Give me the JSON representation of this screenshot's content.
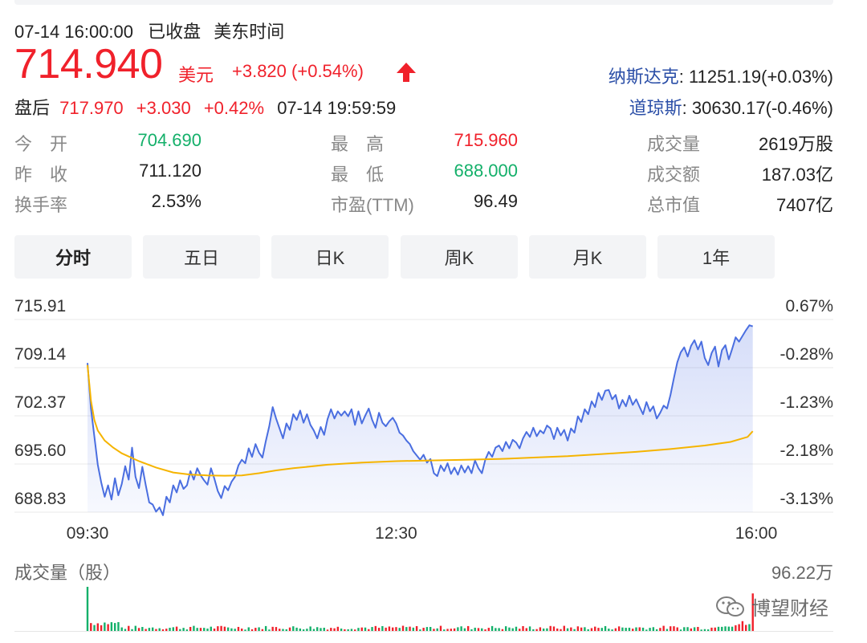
{
  "header": {
    "datetime": "07-14 16:00:00",
    "status": "已收盘",
    "timezone": "美东时间",
    "price": "714.940",
    "currency": "美元",
    "change": "+3.820",
    "change_pct": "(+0.54%)",
    "afterhours_label": "盘后",
    "afterhours_price": "717.970",
    "afterhours_change": "+3.030",
    "afterhours_pct": "+0.42%",
    "afterhours_time": "07-14 19:59:59",
    "nasdaq_label": "纳斯达克",
    "nasdaq_value": ": 11251.19(+0.03%)",
    "dow_label": "道琼斯",
    "dow_value": ": 30630.17(-0.46%)",
    "colors": {
      "up": "#f0212b",
      "down": "#14b06a",
      "index_link": "#2a4ea7"
    }
  },
  "stats": {
    "open_label": "今　开",
    "open_value": "704.690",
    "prev_close_label": "昨　收",
    "prev_close_value": "711.120",
    "turnover_label": "换手率",
    "turnover_value": "2.53%",
    "high_label": "最　高",
    "high_value": "715.960",
    "low_label": "最　低",
    "low_value": "688.000",
    "pe_label": "市盈(TTM)",
    "pe_value": "96.49",
    "volume_label": "成交量",
    "volume_value": "2619万股",
    "amount_label": "成交额",
    "amount_value": "187.03亿",
    "mcap_label": "总市值",
    "mcap_value": "7407亿"
  },
  "tabs": [
    "分时",
    "五日",
    "日K",
    "周K",
    "月K",
    "1年"
  ],
  "active_tab": 0,
  "volume_panel": {
    "title": "成交量（股）",
    "max_label": "96.22万"
  },
  "watermark": {
    "text": "博望财经",
    "icon": "wechat-icon"
  },
  "chart_data": {
    "type": "line",
    "ylim": [
      688.83,
      715.91
    ],
    "y_ticks_left": [
      "715.91",
      "709.14",
      "702.37",
      "695.60",
      "688.83"
    ],
    "y_ticks_right": [
      "0.67%",
      "-0.28%",
      "-1.23%",
      "-2.18%",
      "-3.13%"
    ],
    "x_ticks": [
      "09:30",
      "12:30",
      "16:00"
    ],
    "x_range_minutes": [
      0,
      390
    ],
    "grid": true,
    "series": [
      {
        "color": "#4a6ee0",
        "fill": true,
        "points": [
          [
            0,
            709.8
          ],
          [
            2,
            703.4
          ],
          [
            4,
            699.5
          ],
          [
            6,
            695.5
          ],
          [
            8,
            693.0
          ],
          [
            10,
            691.0
          ],
          [
            12,
            692.6
          ],
          [
            14,
            690.6
          ],
          [
            16,
            693.6
          ],
          [
            18,
            691.2
          ],
          [
            20,
            692.8
          ],
          [
            22,
            695.3
          ],
          [
            24,
            693.4
          ],
          [
            26,
            697.9
          ],
          [
            28,
            693.8
          ],
          [
            30,
            692.2
          ],
          [
            32,
            695.2
          ],
          [
            34,
            692.6
          ],
          [
            36,
            690.2
          ],
          [
            38,
            689.9
          ],
          [
            40,
            688.9
          ],
          [
            42,
            689.5
          ],
          [
            44,
            688.4
          ],
          [
            46,
            691.0
          ],
          [
            48,
            690.2
          ],
          [
            50,
            692.6
          ],
          [
            52,
            691.6
          ],
          [
            54,
            693.3
          ],
          [
            56,
            692.1
          ],
          [
            58,
            692.6
          ],
          [
            60,
            694.6
          ],
          [
            62,
            693.4
          ],
          [
            64,
            695.0
          ],
          [
            66,
            694.0
          ],
          [
            68,
            693.3
          ],
          [
            70,
            692.7
          ],
          [
            72,
            695.0
          ],
          [
            74,
            693.5
          ],
          [
            76,
            691.8
          ],
          [
            78,
            690.8
          ],
          [
            80,
            692.5
          ],
          [
            82,
            691.9
          ],
          [
            84,
            693.1
          ],
          [
            86,
            693.8
          ],
          [
            88,
            695.4
          ],
          [
            90,
            696.2
          ],
          [
            92,
            695.7
          ],
          [
            94,
            697.8
          ],
          [
            96,
            696.6
          ],
          [
            98,
            698.4
          ],
          [
            100,
            697.2
          ],
          [
            102,
            696.5
          ],
          [
            104,
            698.8
          ],
          [
            106,
            700.9
          ],
          [
            108,
            703.6
          ],
          [
            110,
            702.0
          ],
          [
            112,
            700.6
          ],
          [
            114,
            699.2
          ],
          [
            116,
            701.3
          ],
          [
            118,
            700.4
          ],
          [
            120,
            702.6
          ],
          [
            122,
            701.8
          ],
          [
            124,
            703.1
          ],
          [
            126,
            701.4
          ],
          [
            128,
            702.6
          ],
          [
            130,
            701.1
          ],
          [
            132,
            700.3
          ],
          [
            134,
            699.2
          ],
          [
            136,
            700.8
          ],
          [
            138,
            699.7
          ],
          [
            140,
            701.9
          ],
          [
            142,
            703.3
          ],
          [
            144,
            702.0
          ],
          [
            146,
            703.0
          ],
          [
            148,
            702.4
          ],
          [
            150,
            703.0
          ],
          [
            152,
            702.3
          ],
          [
            154,
            703.3
          ],
          [
            156,
            701.1
          ],
          [
            158,
            703.0
          ],
          [
            160,
            701.3
          ],
          [
            162,
            702.4
          ],
          [
            164,
            703.4
          ],
          [
            166,
            701.8
          ],
          [
            168,
            700.7
          ],
          [
            170,
            702.8
          ],
          [
            172,
            701.4
          ],
          [
            174,
            700.9
          ],
          [
            176,
            701.6
          ],
          [
            178,
            702.1
          ],
          [
            180,
            701.3
          ],
          [
            182,
            700.0
          ],
          [
            184,
            699.6
          ],
          [
            186,
            698.9
          ],
          [
            188,
            698.4
          ],
          [
            190,
            697.4
          ],
          [
            192,
            696.8
          ],
          [
            194,
            696.2
          ],
          [
            196,
            696.9
          ],
          [
            198,
            695.8
          ],
          [
            200,
            696.3
          ],
          [
            202,
            694.3
          ],
          [
            204,
            693.9
          ],
          [
            206,
            695.4
          ],
          [
            208,
            694.6
          ],
          [
            210,
            695.7
          ],
          [
            212,
            694.2
          ],
          [
            214,
            695.1
          ],
          [
            216,
            694.1
          ],
          [
            218,
            695.4
          ],
          [
            220,
            694.4
          ],
          [
            222,
            695.3
          ],
          [
            224,
            694.3
          ],
          [
            226,
            696.1
          ],
          [
            228,
            695.0
          ],
          [
            230,
            694.3
          ],
          [
            232,
            696.2
          ],
          [
            234,
            697.3
          ],
          [
            236,
            696.6
          ],
          [
            238,
            697.9
          ],
          [
            240,
            698.2
          ],
          [
            242,
            697.4
          ],
          [
            244,
            698.7
          ],
          [
            246,
            697.8
          ],
          [
            248,
            699.0
          ],
          [
            250,
            698.6
          ],
          [
            252,
            697.8
          ],
          [
            254,
            699.2
          ],
          [
            256,
            700.1
          ],
          [
            258,
            699.4
          ],
          [
            260,
            700.7
          ],
          [
            262,
            699.5
          ],
          [
            264,
            700.3
          ],
          [
            266,
            699.9
          ],
          [
            268,
            701.0
          ],
          [
            270,
            700.6
          ],
          [
            272,
            699.1
          ],
          [
            274,
            700.7
          ],
          [
            276,
            699.6
          ],
          [
            278,
            700.4
          ],
          [
            280,
            698.9
          ],
          [
            282,
            700.6
          ],
          [
            284,
            700.0
          ],
          [
            286,
            702.3
          ],
          [
            288,
            701.5
          ],
          [
            290,
            703.3
          ],
          [
            292,
            702.6
          ],
          [
            294,
            704.4
          ],
          [
            296,
            703.6
          ],
          [
            298,
            705.6
          ],
          [
            300,
            704.6
          ],
          [
            302,
            705.9
          ],
          [
            304,
            706.0
          ],
          [
            306,
            704.7
          ],
          [
            308,
            705.3
          ],
          [
            310,
            703.4
          ],
          [
            312,
            704.6
          ],
          [
            314,
            703.7
          ],
          [
            316,
            705.2
          ],
          [
            318,
            703.9
          ],
          [
            320,
            704.7
          ],
          [
            322,
            703.6
          ],
          [
            324,
            702.6
          ],
          [
            326,
            704.3
          ],
          [
            328,
            703.0
          ],
          [
            330,
            703.7
          ],
          [
            332,
            702.0
          ],
          [
            334,
            702.8
          ],
          [
            336,
            703.8
          ],
          [
            338,
            703.4
          ],
          [
            340,
            705.3
          ],
          [
            342,
            707.7
          ],
          [
            344,
            709.9
          ],
          [
            346,
            711.3
          ],
          [
            348,
            712.0
          ],
          [
            350,
            710.7
          ],
          [
            352,
            712.2
          ],
          [
            354,
            713.0
          ],
          [
            356,
            711.7
          ],
          [
            358,
            712.8
          ],
          [
            360,
            710.5
          ],
          [
            362,
            709.5
          ],
          [
            364,
            711.2
          ],
          [
            366,
            712.1
          ],
          [
            368,
            709.3
          ],
          [
            370,
            711.6
          ],
          [
            372,
            712.3
          ],
          [
            374,
            710.3
          ],
          [
            376,
            711.8
          ],
          [
            378,
            713.4
          ],
          [
            380,
            712.8
          ],
          [
            382,
            713.6
          ],
          [
            384,
            714.4
          ],
          [
            386,
            715.1
          ],
          [
            388,
            714.94
          ]
        ]
      },
      {
        "color": "#f5b400",
        "fill": false,
        "points": [
          [
            0,
            709.5
          ],
          [
            2,
            704.5
          ],
          [
            4,
            701.8
          ],
          [
            6,
            700.3
          ],
          [
            10,
            698.9
          ],
          [
            15,
            697.9
          ],
          [
            20,
            697.1
          ],
          [
            30,
            696.0
          ],
          [
            40,
            695.1
          ],
          [
            50,
            694.4
          ],
          [
            60,
            694.1
          ],
          [
            70,
            694.0
          ],
          [
            80,
            693.95
          ],
          [
            90,
            694.0
          ],
          [
            100,
            694.3
          ],
          [
            110,
            694.7
          ],
          [
            120,
            695.0
          ],
          [
            140,
            695.5
          ],
          [
            160,
            695.8
          ],
          [
            180,
            696.0
          ],
          [
            200,
            696.1
          ],
          [
            220,
            696.2
          ],
          [
            240,
            696.3
          ],
          [
            260,
            696.5
          ],
          [
            280,
            696.7
          ],
          [
            300,
            697.0
          ],
          [
            320,
            697.3
          ],
          [
            340,
            697.7
          ],
          [
            360,
            698.2
          ],
          [
            375,
            698.7
          ],
          [
            385,
            699.4
          ],
          [
            388,
            700.2
          ]
        ]
      }
    ],
    "volume": {
      "ymax": 962200,
      "bars_up_color": "#f0212b",
      "bars_down_color": "#14b06a"
    }
  }
}
